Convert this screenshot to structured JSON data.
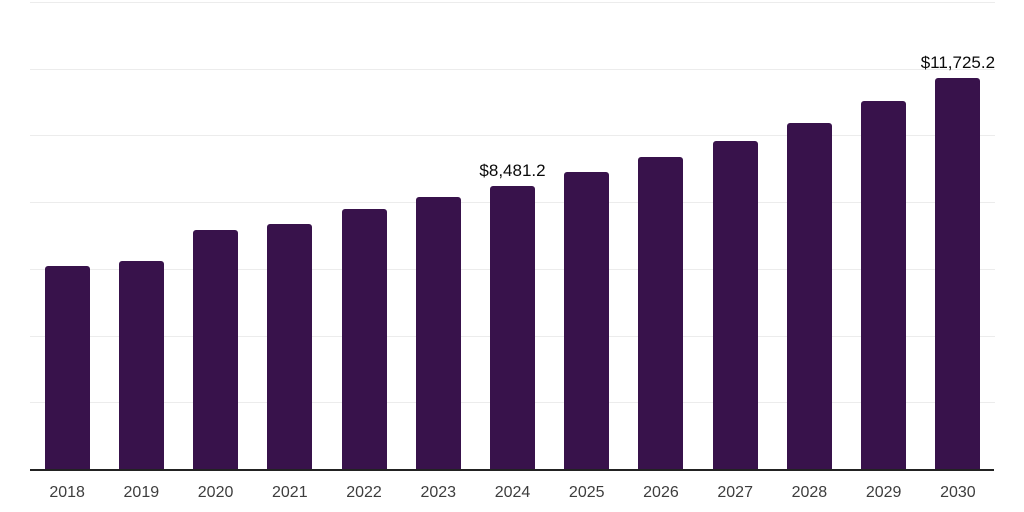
{
  "chart_data": {
    "type": "bar",
    "title": "",
    "xlabel": "",
    "ylabel": "",
    "categories": [
      "2018",
      "2019",
      "2020",
      "2021",
      "2022",
      "2023",
      "2024",
      "2025",
      "2026",
      "2027",
      "2028",
      "2029",
      "2030"
    ],
    "values": [
      6100,
      6250,
      7150,
      7350,
      7800,
      8150,
      8481.2,
      8890,
      9350,
      9840,
      10380,
      11040,
      11725.2
    ],
    "data_labels": [
      {
        "category": "2024",
        "text": "$8,481.2"
      },
      {
        "category": "2030",
        "text": "$11,725.2"
      }
    ],
    "ylim": [
      0,
      14000
    ],
    "gridline_step": 2000,
    "grid": "horizontal-only",
    "legend": "none",
    "y_axis_labels_visible": false,
    "bar_color": "#38124b",
    "gridline_color": "#ececec",
    "axis_line_color": "#222222",
    "tick_label_color": "#3d3d3d",
    "value_label_color": "#0a0a0a",
    "background_color": "#ffffff"
  }
}
